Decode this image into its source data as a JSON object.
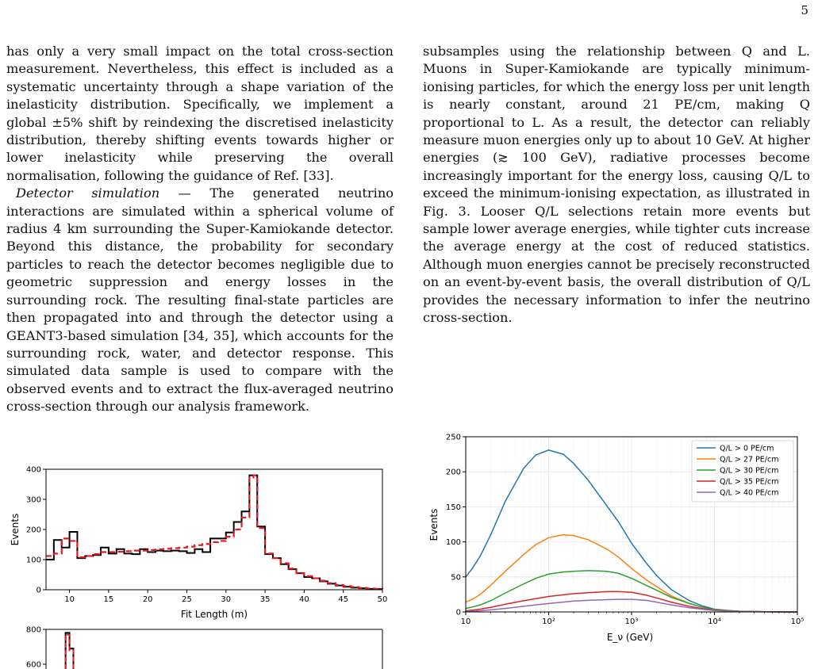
{
  "page_number": "5",
  "left_column": {
    "para1": "has only a very small impact on the total cross-section measurement. Nevertheless, this effect is included as a systematic uncertainty through a shape variation of the inelasticity distribution. Specifically, we implement a global ±5% shift by reindexing the discretised inelasticity distribution, thereby shifting events towards higher or lower inelasticity while preserving the overall normalisation, following the guidance of Ref. [33].",
    "para2_head": "Detector simulation",
    "para2_sep": " — ",
    "para2_body": "The generated neutrino interactions are simulated within a spherical volume of radius 4 km surrounding the Super-Kamiokande detector. Beyond this distance, the probability for secondary particles to reach the detector becomes negligible due to geometric suppression and energy losses in the surrounding rock. The resulting final-state particles are then propagated into and through the detector using a GEANT3-based simulation [34, 35], which accounts for the surrounding rock, water, and detector response. This simulated data sample is used to compare with the observed events and to extract the flux-averaged neutrino cross-section through our analysis framework."
  },
  "right_column": {
    "para1": "subsamples using the relationship between Q and L. Muons in Super-Kamiokande are typically minimum-ionising particles, for which the energy loss per unit length is nearly constant, around 21 PE/cm, making Q proportional to L. As a result, the detector can reliably measure muon energies only up to about 10 GeV. At higher energies (≳ 100 GeV), radiative processes become increasingly important for the energy loss, causing Q/L to exceed the minimum-ionising expectation, as illustrated in Fig. 3. Looser Q/L selections retain more events but sample lower average energies, while tighter cuts increase the average energy at the cost of reduced statistics. Although muon energies cannot be precisely reconstructed on an event-by-event basis, the overall distribution of Q/L provides the necessary information to infer the neutrino cross-section."
  },
  "chart_data": [
    {
      "type": "line",
      "title": "",
      "xlabel": "Fit Length (m)",
      "ylabel": "Events",
      "xlim": [
        7,
        50
      ],
      "ylim": [
        0,
        400
      ],
      "xticks": [
        10,
        15,
        20,
        25,
        30,
        35,
        40,
        45,
        50
      ],
      "yticks": [
        0,
        100,
        200,
        300,
        400
      ],
      "style": "step",
      "series": [
        {
          "color": "#000000",
          "dash": "solid",
          "edges": [
            7,
            8,
            9,
            10,
            11,
            12,
            13,
            14,
            15,
            16,
            17,
            18,
            19,
            20,
            21,
            22,
            23,
            24,
            25,
            26,
            27,
            28,
            29,
            30,
            31,
            32,
            33,
            34,
            35,
            36,
            37,
            38,
            39,
            40,
            41,
            42,
            43,
            44,
            45,
            46,
            47,
            48,
            49,
            50
          ],
          "values": [
            100,
            165,
            140,
            192,
            105,
            112,
            115,
            140,
            120,
            135,
            120,
            118,
            135,
            125,
            130,
            128,
            130,
            128,
            122,
            135,
            125,
            170,
            170,
            190,
            225,
            260,
            380,
            210,
            118,
            105,
            85,
            68,
            55,
            42,
            38,
            28,
            20,
            14,
            10,
            7,
            5,
            3,
            2
          ]
        },
        {
          "color": "#e8191e",
          "dash": "dashed",
          "x": [
            7,
            8,
            9,
            10,
            11,
            12,
            13,
            14,
            15,
            16,
            17,
            18,
            19,
            20,
            21,
            22,
            23,
            24,
            25,
            26,
            27,
            28,
            29,
            30,
            31,
            32,
            33,
            33.5,
            34,
            35,
            36,
            37,
            38,
            39,
            40,
            41,
            42,
            43,
            44,
            45,
            46,
            47,
            48,
            49,
            50
          ],
          "values": [
            112,
            120,
            170,
            162,
            108,
            112,
            118,
            125,
            125,
            126,
            128,
            130,
            130,
            132,
            134,
            136,
            138,
            140,
            143,
            148,
            152,
            158,
            162,
            176,
            200,
            240,
            372,
            380,
            205,
            120,
            105,
            88,
            70,
            55,
            45,
            38,
            30,
            22,
            16,
            12,
            9,
            6,
            4,
            3,
            2
          ]
        }
      ]
    },
    {
      "type": "line",
      "title": "",
      "xlabel": "",
      "ylabel": "",
      "ylim": [
        0,
        800
      ],
      "yticks": [
        600,
        800
      ],
      "xlim": [
        7,
        50
      ],
      "style": "step",
      "series": [
        {
          "color": "#000000",
          "dash": "solid",
          "edges": [
            9.5,
            10,
            10.5
          ],
          "values": [
            780,
            690
          ]
        },
        {
          "color": "#e8191e",
          "dash": "dashed",
          "edges": [
            9.5,
            10,
            10.5
          ],
          "values": [
            770,
            680
          ]
        }
      ]
    },
    {
      "type": "line",
      "title": "",
      "xlabel": "E_ν (GeV)",
      "ylabel": "Events",
      "xscale": "log",
      "xlim": [
        10,
        100000
      ],
      "ylim": [
        0,
        250
      ],
      "yticks": [
        0,
        50,
        100,
        150,
        200,
        250
      ],
      "xticks": [
        "10",
        "10²",
        "10³",
        "10⁴",
        "10⁵"
      ],
      "grid": true,
      "legend_position": "top-right",
      "x": [
        10,
        12,
        15,
        20,
        30,
        50,
        70,
        100,
        150,
        200,
        300,
        500,
        700,
        1000,
        1500,
        2000,
        3000,
        5000,
        7000,
        10000,
        15000,
        20000,
        30000,
        50000,
        100000
      ],
      "series": [
        {
          "name": "Q/L > 0 PE/cm",
          "color": "#1f77b4",
          "values": [
            50,
            62,
            80,
            110,
            158,
            205,
            224,
            231,
            225,
            212,
            188,
            152,
            128,
            98,
            70,
            52,
            32,
            16,
            9,
            4,
            2,
            1,
            0.5,
            0.2,
            0
          ]
        },
        {
          "name": "Q/L > 27 PE/cm",
          "color": "#ff7f0e",
          "values": [
            14,
            18,
            25,
            38,
            58,
            82,
            96,
            106,
            110,
            109,
            103,
            90,
            78,
            62,
            46,
            36,
            23,
            12,
            7,
            3.5,
            1.8,
            1,
            0.5,
            0.2,
            0
          ]
        },
        {
          "name": "Q/L > 30 PE/cm",
          "color": "#2ca02c",
          "values": [
            5,
            7,
            10,
            16,
            27,
            40,
            48,
            54,
            57,
            58,
            59,
            58,
            55,
            48,
            38,
            31,
            21,
            12,
            7,
            3.5,
            1.8,
            1,
            0.5,
            0.2,
            0
          ]
        },
        {
          "name": "Q/L > 35 PE/cm",
          "color": "#d62728",
          "values": [
            1.5,
            2.5,
            4,
            6.5,
            11,
            16,
            19,
            22,
            24.5,
            26,
            27.5,
            29,
            29,
            28,
            24,
            20,
            14,
            8,
            5,
            2.5,
            1.3,
            0.8,
            0.4,
            0.1,
            0
          ]
        },
        {
          "name": "Q/L > 40 PE/cm",
          "color": "#9467bd",
          "values": [
            0.5,
            1,
            1.7,
            3,
            5,
            8,
            10,
            12,
            14,
            15.5,
            16.5,
            17.5,
            18,
            18,
            16.5,
            14,
            10,
            6,
            4,
            2,
            1,
            0.6,
            0.3,
            0.1,
            0
          ]
        }
      ]
    }
  ]
}
